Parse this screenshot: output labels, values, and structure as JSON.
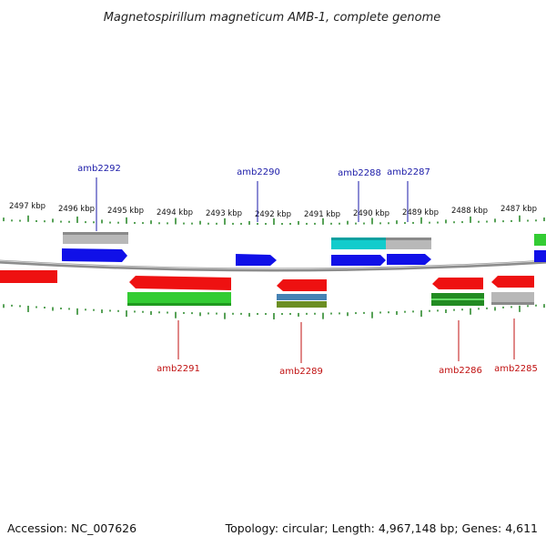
{
  "title": "Magnetospirillum magneticum AMB-1, complete genome",
  "footer": {
    "accession": "Accession: NC_007626",
    "summary": "Topology: circular; Length: 4,967,148 bp; Genes: 4,611"
  },
  "colors": {
    "backbone": "#8c8c8c",
    "tick": "#2e8b2e",
    "label_forward": "#1a1aa8",
    "label_reverse": "#c01010",
    "cds_blue": "#1010e8",
    "cds_red": "#ee1111",
    "gene_grey": "#b8b8b8",
    "gene_green": "#33cc33",
    "gene_cyan": "#11cccc",
    "gene_darkgreen": "#228b22",
    "gene_steel": "#4682b4",
    "gene_olive": "#6b8e23"
  },
  "kbp_labels": [
    "2497 kbp",
    "2496 kbp",
    "2495 kbp",
    "2494 kbp",
    "2493 kbp",
    "2492 kbp",
    "2491 kbp",
    "2490 kbp",
    "2489 kbp",
    "2488 kbp",
    "2487 kbp"
  ],
  "gene_labels": {
    "forward": [
      "amb2292",
      "amb2290",
      "amb2288",
      "amb2287"
    ],
    "reverse": [
      "amb2291",
      "amb2289",
      "amb2286",
      "amb2285"
    ]
  }
}
